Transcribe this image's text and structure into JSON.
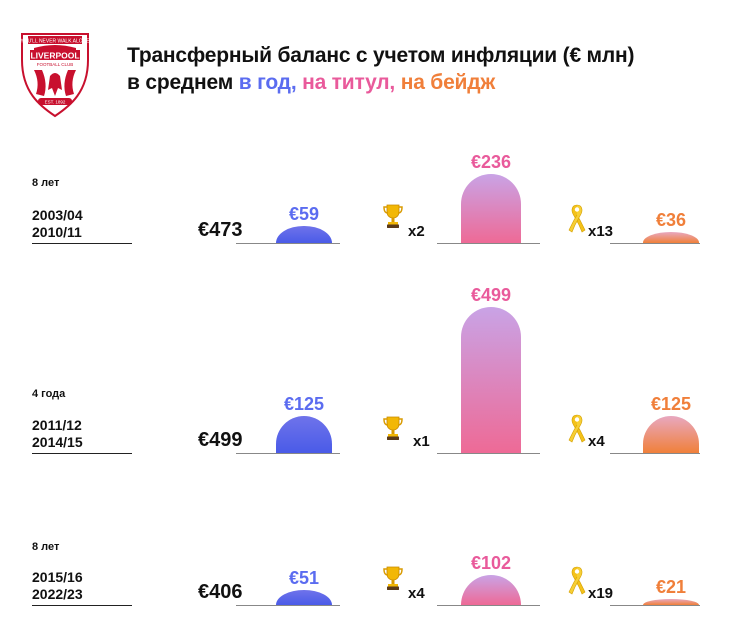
{
  "header": {
    "title_line1": "Трансферный баланс с учетом инфляции (€ млн)",
    "title_line2_prefix": "в среднем ",
    "title_part_year": "в год,",
    "title_part_title": " на титул,",
    "title_part_badge": " на бейдж",
    "logo_text_top": "YOU'LL NEVER WALK ALONE",
    "logo_text_main": "LIVERPOOL",
    "logo_text_sub": "FOOTBALL CLUB",
    "logo_text_est": "EST. 1892"
  },
  "colors": {
    "per_year": "#5b6cf0",
    "per_title": "#e95a9b",
    "per_badge": "#f07f3a"
  },
  "chart_data": {
    "type": "bar",
    "series": [
      {
        "name": "в год",
        "values": [
          59,
          125,
          51
        ]
      },
      {
        "name": "на титул",
        "values": [
          236,
          499,
          102
        ]
      },
      {
        "name": "на бейдж",
        "values": [
          36,
          125,
          21
        ]
      }
    ],
    "categories": [
      "2003/04 2010/11",
      "2011/12 2014/15",
      "2015/16 2022/23"
    ],
    "rows": [
      {
        "period": "8 лет",
        "season_start": "2003/04",
        "season_end": "2010/11",
        "total": "€473",
        "per_year": 59,
        "per_year_label": "€59",
        "titles": "x2",
        "per_title": 236,
        "per_title_label": "€236",
        "badges": "x13",
        "per_badge": 36,
        "per_badge_label": "€36"
      },
      {
        "period": "4 года",
        "season_start": "2011/12",
        "season_end": "2014/15",
        "total": "€499",
        "per_year": 125,
        "per_year_label": "€125",
        "titles": "x1",
        "per_title": 499,
        "per_title_label": "€499",
        "badges": "x4",
        "per_badge": 125,
        "per_badge_label": "€125"
      },
      {
        "period": "8 лет",
        "season_start": "2015/16",
        "season_end": "2022/23",
        "total": "€406",
        "per_year": 51,
        "per_year_label": "€51",
        "titles": "x4",
        "per_title": 102,
        "per_title_label": "€102",
        "badges": "x19",
        "per_badge": 21,
        "per_badge_label": "€21"
      }
    ]
  }
}
